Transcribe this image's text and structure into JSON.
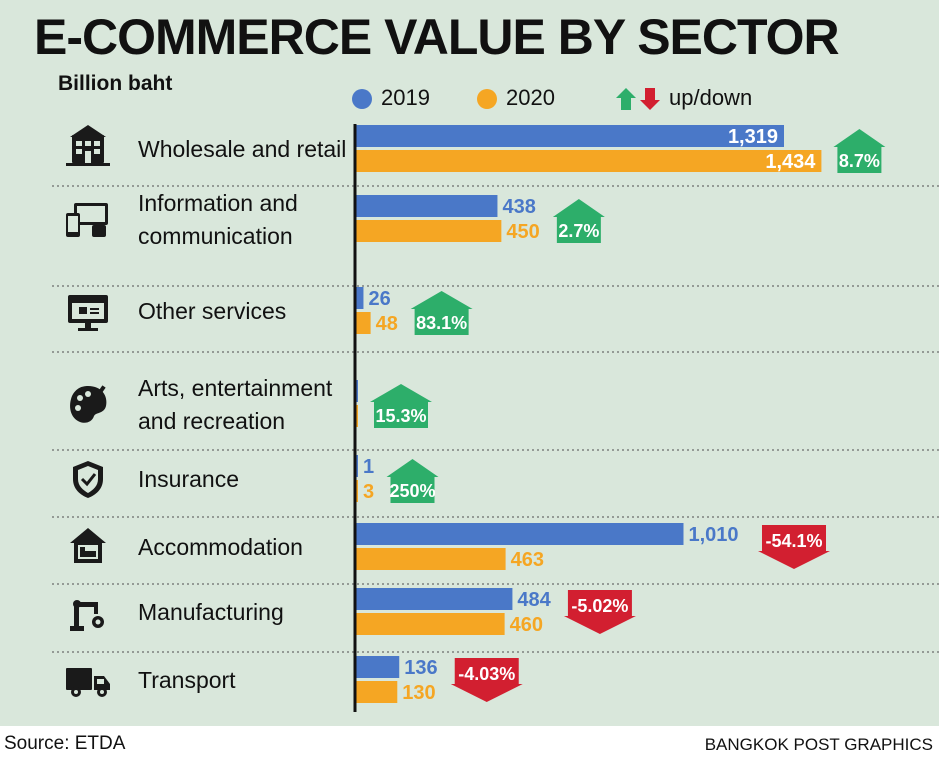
{
  "title": "E-COMMERCE VALUE BY SECTOR",
  "unit": "Billion baht",
  "legend": {
    "series1": "2019",
    "series2": "2020",
    "change": "up/down"
  },
  "colors": {
    "s2019": "#4a78c8",
    "s2020": "#f5a623",
    "up": "#2dae6a",
    "down": "#d21f30",
    "panel": "#d9e7db",
    "axis": "#111111"
  },
  "source": "Source: ETDA",
  "credit": "BANGKOK POST GRAPHICS",
  "chart_data": {
    "type": "bar",
    "orientation": "horizontal",
    "unit": "Billion baht",
    "series": [
      {
        "name": "2019",
        "values": [
          1319,
          438,
          26,
          1,
          1,
          1010,
          484,
          136
        ]
      },
      {
        "name": "2020",
        "values": [
          1434,
          450,
          48,
          3,
          3,
          463,
          460,
          130
        ]
      }
    ],
    "categories": [
      {
        "label": [
          "Wholesale and retail"
        ],
        "icon": "store-building-icon",
        "v2019": "1,319",
        "v2020": "1,434",
        "change": "8.7%",
        "dir": "up",
        "labels_inside": true
      },
      {
        "label": [
          "Information and",
          "communication"
        ],
        "icon": "devices-icon",
        "v2019": "438",
        "v2020": "450",
        "change": "2.7%",
        "dir": "up"
      },
      {
        "label": [
          "Other services"
        ],
        "icon": "online-shop-icon",
        "v2019": "26",
        "v2020": "48",
        "change": "83.1%",
        "dir": "up"
      },
      {
        "label": [
          "Arts, entertainment",
          "and recreation"
        ],
        "icon": "palette-icon",
        "v2019": "",
        "v2020": "",
        "change": "15.3%",
        "dir": "up"
      },
      {
        "label": [
          "Insurance"
        ],
        "icon": "shield-check-icon",
        "v2019": "1",
        "v2020": "3",
        "change": "250%",
        "dir": "up"
      },
      {
        "label": [
          "Accommodation"
        ],
        "icon": "house-bed-icon",
        "v2019": "1,010",
        "v2020": "463",
        "change": "-54.1%",
        "dir": "down"
      },
      {
        "label": [
          "Manufacturing"
        ],
        "icon": "robot-arm-icon",
        "v2019": "484",
        "v2020": "460",
        "change": "-5.02%",
        "dir": "down"
      },
      {
        "label": [
          "Transport"
        ],
        "icon": "truck-icon",
        "v2019": "136",
        "v2020": "130",
        "change": "-4.03%",
        "dir": "down"
      }
    ]
  }
}
